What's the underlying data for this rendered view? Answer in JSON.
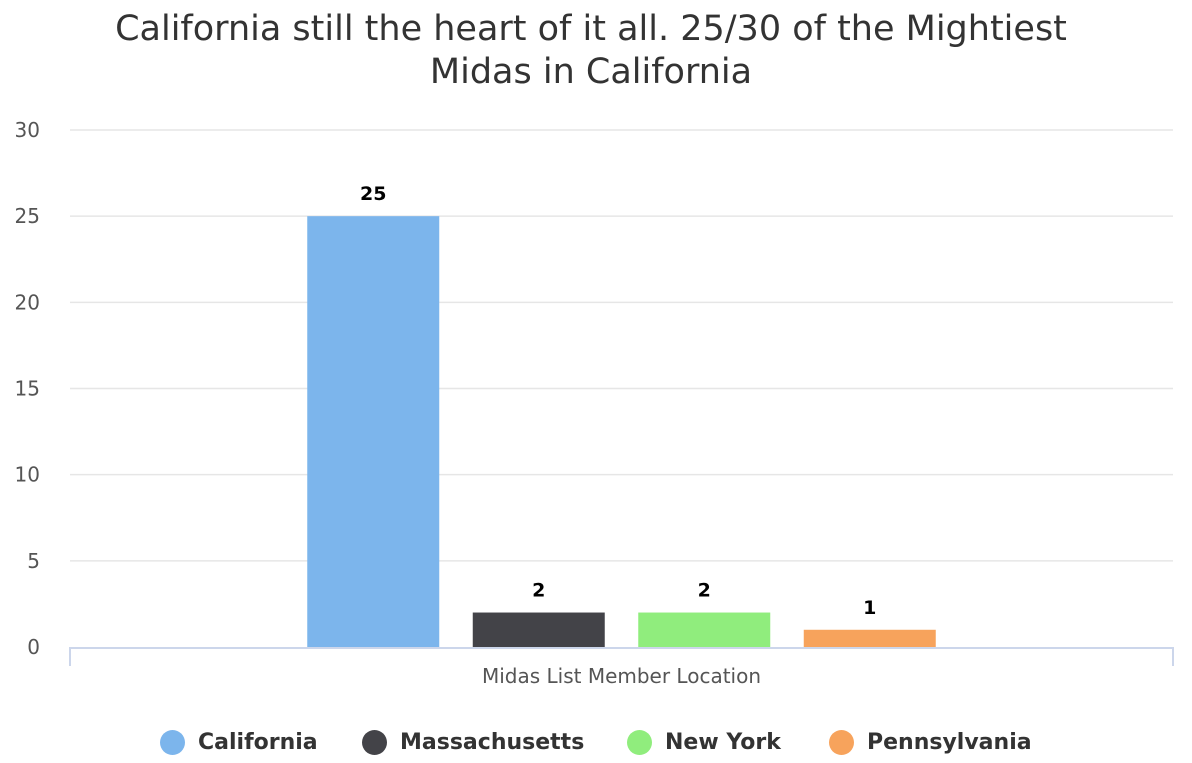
{
  "chart_data": {
    "type": "bar",
    "title": "California still the heart of it all. 25/30 of the Mightiest Midas in California",
    "xlabel": "Midas List Member Location",
    "ylabel": "",
    "ylim": [
      0,
      30
    ],
    "yticks": [
      0,
      5,
      10,
      15,
      20,
      25,
      30
    ],
    "grid": true,
    "legend_position": "bottom",
    "series": [
      {
        "name": "California",
        "values": [
          25
        ],
        "color": "#7cb5ec"
      },
      {
        "name": "Massachusetts",
        "values": [
          2
        ],
        "color": "#434348"
      },
      {
        "name": "New York",
        "values": [
          2
        ],
        "color": "#90ed7d"
      },
      {
        "name": "Pennsylvania",
        "values": [
          1
        ],
        "color": "#f7a35c"
      }
    ]
  }
}
